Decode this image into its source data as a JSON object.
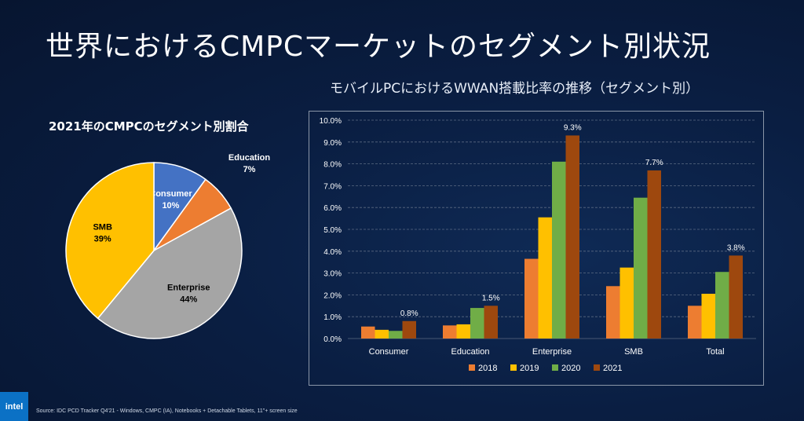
{
  "slide": {
    "title": "世界におけるCMPCマーケットのセグメント別状況",
    "source": "Source: IDC PCD Tracker Q4'21 - Windows, CMPC (IA), Notebooks + Detachable Tablets, 11\"+ screen size",
    "logo_text": "intel"
  },
  "chart_data": [
    {
      "type": "pie",
      "title": "2021年のCMPCのセグメント別割合",
      "slices": [
        {
          "name": "Consumer",
          "value": 10,
          "label": "10%",
          "color": "#4472c4"
        },
        {
          "name": "Education",
          "value": 7,
          "label": "7%",
          "color": "#ed7d31"
        },
        {
          "name": "Enterprise",
          "value": 44,
          "label": "44%",
          "color": "#a5a5a5"
        },
        {
          "name": "SMB",
          "value": 39,
          "label": "39%",
          "color": "#ffc000"
        }
      ]
    },
    {
      "type": "bar",
      "title": "モバイルPCにおけるWWAN搭載比率の推移（セグメント別）",
      "categories": [
        "Consumer",
        "Education",
        "Enterprise",
        "SMB",
        "Total"
      ],
      "ylim": [
        0,
        10
      ],
      "yticks": [
        "0.0%",
        "1.0%",
        "2.0%",
        "3.0%",
        "4.0%",
        "5.0%",
        "6.0%",
        "7.0%",
        "8.0%",
        "9.0%",
        "10.0%"
      ],
      "grid": true,
      "legend": "bottom",
      "series": [
        {
          "name": "2018",
          "color": "#ed7d31",
          "values": [
            0.55,
            0.6,
            3.65,
            2.4,
            1.5
          ]
        },
        {
          "name": "2019",
          "color": "#ffc000",
          "values": [
            0.4,
            0.65,
            5.55,
            3.25,
            2.05
          ]
        },
        {
          "name": "2020",
          "color": "#70ad47",
          "values": [
            0.35,
            1.4,
            8.1,
            6.45,
            3.05
          ]
        },
        {
          "name": "2021",
          "color": "#9e480e",
          "values": [
            0.8,
            1.5,
            9.3,
            7.7,
            3.8
          ]
        }
      ],
      "data_labels": [
        {
          "category": "Consumer",
          "series": "2021",
          "label": "0.8%"
        },
        {
          "category": "Education",
          "series": "2021",
          "label": "1.5%"
        },
        {
          "category": "Enterprise",
          "series": "2021",
          "label": "9.3%"
        },
        {
          "category": "SMB",
          "series": "2021",
          "label": "7.7%"
        },
        {
          "category": "Total",
          "series": "2021",
          "label": "3.8%"
        }
      ]
    }
  ]
}
